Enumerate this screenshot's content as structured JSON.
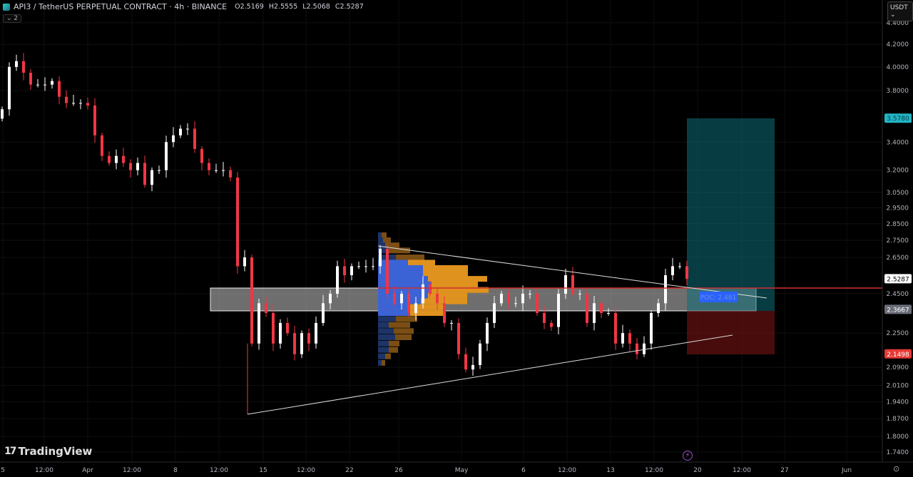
{
  "header": {
    "title": "API3 / TetherUS PERPETUAL CONTRACT · 4h · BINANCE",
    "open": "O2.5169",
    "high": "H2.5555",
    "low": "L2.5068",
    "close": "C2.5287",
    "collapse_label": "⌄ 2"
  },
  "currency_button": "USDT ⌄",
  "brand": "TradingView",
  "colors": {
    "up": "#ffffff",
    "down": "#f23645",
    "target": "#0d4a52",
    "stop": "#4a1212",
    "poc": "#2962ff",
    "level": "#d32f2f"
  },
  "chart_data": {
    "type": "candlestick",
    "scale": "log",
    "ylim": [
      1.74,
      4.4
    ],
    "price_ticks": [
      "4.4000",
      "4.2000",
      "4.0000",
      "3.8000",
      "3.4000",
      "3.2000",
      "3.0500",
      "2.9500",
      "2.8500",
      "2.7500",
      "2.6500",
      "2.4500",
      "2.2500",
      "2.0900",
      "2.0100",
      "1.9400",
      "1.8700",
      "1.8000",
      "1.7400"
    ],
    "time_ticks": [
      "5",
      "12:00",
      "Apr",
      "12:00",
      "8",
      "12:00",
      "15",
      "12:00",
      "22",
      "26",
      "May",
      "6",
      "12:00",
      "13",
      "12:00",
      "20",
      "12:00",
      "27",
      "Jun"
    ],
    "closes": [
      3.65,
      4.0,
      4.05,
      3.95,
      3.85,
      3.85,
      3.85,
      3.88,
      3.75,
      3.7,
      3.7,
      3.7,
      3.68,
      3.45,
      3.3,
      3.25,
      3.3,
      3.25,
      3.2,
      3.25,
      3.1,
      3.2,
      3.2,
      3.4,
      3.45,
      3.5,
      3.5,
      3.35,
      3.25,
      3.2,
      3.2,
      3.2,
      3.15,
      2.6,
      2.65,
      2.2,
      2.4,
      2.35,
      2.2,
      2.3,
      2.25,
      2.15,
      2.25,
      2.2,
      2.3,
      2.4,
      2.45,
      2.6,
      2.55,
      2.6,
      2.6,
      2.6,
      2.6,
      2.7,
      2.45,
      2.4,
      2.45,
      2.35,
      2.4,
      2.5,
      2.45,
      2.4,
      2.3,
      2.3,
      2.15,
      2.08,
      2.1,
      2.2,
      2.3,
      2.4,
      2.45,
      2.4,
      2.4,
      2.45,
      2.45,
      2.35,
      2.3,
      2.28,
      2.45,
      2.55,
      2.45,
      2.45,
      2.3,
      2.4,
      2.35,
      2.35,
      2.2,
      2.25,
      2.2,
      2.15,
      2.2,
      2.35,
      2.4,
      2.55,
      2.6,
      2.6,
      2.53
    ],
    "price_labels": {
      "last": "2.5287",
      "target": "3.5780",
      "entry": "2.3667",
      "stop": "2.1498"
    },
    "poc_label": "POC: 2.481",
    "volume_profile": [
      {
        "price": 2.78,
        "up": 5,
        "down": 7
      },
      {
        "price": 2.75,
        "up": 7,
        "down": 11
      },
      {
        "price": 2.72,
        "up": 10,
        "down": 20
      },
      {
        "price": 2.69,
        "up": 15,
        "down": 30
      },
      {
        "price": 2.65,
        "up": 25,
        "down": 40
      },
      {
        "price": 2.62,
        "up": 42,
        "down": 38
      },
      {
        "price": 2.59,
        "up": 63,
        "down": 63
      },
      {
        "price": 2.56,
        "up": 63,
        "down": 63
      },
      {
        "price": 2.53,
        "up": 70,
        "down": 83
      },
      {
        "price": 2.5,
        "up": 75,
        "down": 65
      },
      {
        "price": 2.47,
        "up": 75,
        "down": 80
      },
      {
        "price": 2.44,
        "up": 70,
        "down": 55
      },
      {
        "price": 2.41,
        "up": 60,
        "down": 65
      },
      {
        "price": 2.38,
        "up": 45,
        "down": 50
      },
      {
        "price": 2.35,
        "up": 45,
        "down": 50
      },
      {
        "price": 2.32,
        "up": 25,
        "down": 30
      },
      {
        "price": 2.29,
        "up": 15,
        "down": 30
      },
      {
        "price": 2.26,
        "up": 22,
        "down": 28
      },
      {
        "price": 2.23,
        "up": 24,
        "down": 23
      },
      {
        "price": 2.2,
        "up": 15,
        "down": 15
      },
      {
        "price": 2.17,
        "up": 15,
        "down": 13
      },
      {
        "price": 2.14,
        "up": 10,
        "down": 8
      },
      {
        "price": 2.11,
        "up": 5,
        "down": 5
      }
    ]
  }
}
